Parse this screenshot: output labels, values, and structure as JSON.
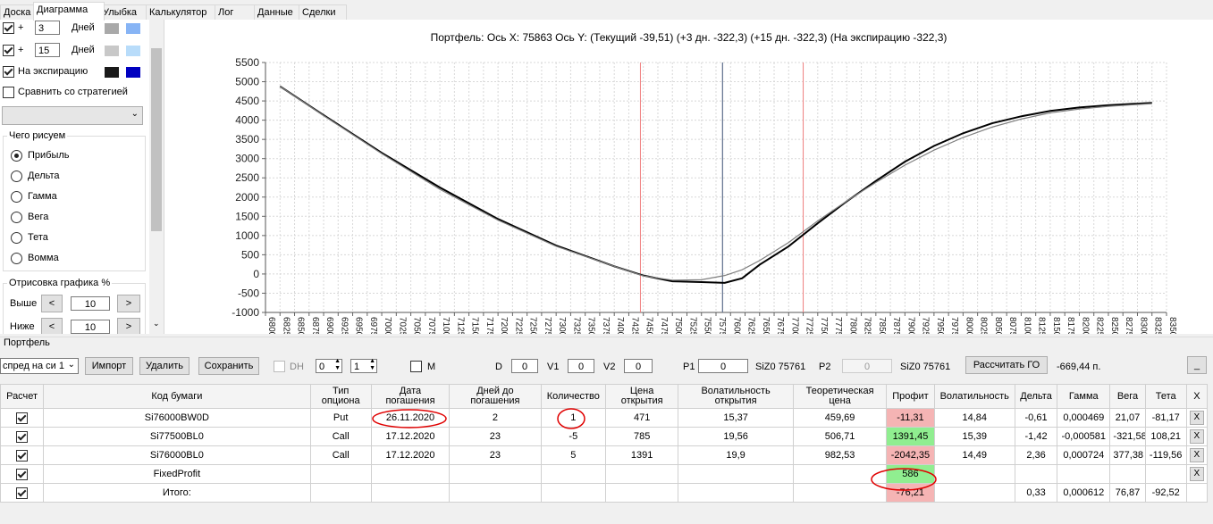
{
  "tabs": [
    "Доска",
    "Диаграмма",
    "Улыбка",
    "Калькулятор",
    "Лог",
    "Данные",
    "Сделки"
  ],
  "active_tab": "Диаграмма",
  "left_panel": {
    "row1": {
      "sign": "+",
      "value": "3",
      "unit": "Дней"
    },
    "row2": {
      "sign": "+",
      "value": "15",
      "unit": "Дней"
    },
    "expiry_label": "На экспирацию",
    "compare_label": "Сравнить со стратегией",
    "group_title": "Чего рисуем",
    "radio_options": [
      "Прибыль",
      "Дельта",
      "Гамма",
      "Вега",
      "Тета",
      "Вомма"
    ],
    "selected_radio": "Прибыль",
    "draw_group_title": "Отрисовка графика %",
    "above_label": "Выше",
    "above_value": "10",
    "below_label": "Ниже",
    "below_value": "10",
    "dec": "<",
    "inc": ">",
    "colors": {
      "row1_a": "#a9a9a9",
      "row1_b": "#87b4f5",
      "row2_a": "#c8c8c8",
      "row2_b": "#b8dcfa",
      "exp_a": "#1a1a1a",
      "exp_b": "#0000c0"
    }
  },
  "chart": {
    "header": "Портфель: Ось X: 75863 Ось Y:  (Текущий -39,51)  (+3 дн. -322,3)  (+15 дн. -322,3)  (На экспирацию -322,3)"
  },
  "chart_data": {
    "type": "line",
    "title": "Портфель: Ось X: 75863 Ось Y:  (Текущий -39,51)  (+3 дн. -322,3)  (+15 дн. -322,3)  (На экспирацию -322,3)",
    "xlim": [
      68000,
      83500
    ],
    "ylim": [
      -1000,
      5500
    ],
    "xticks": [
      68000,
      68250,
      68500,
      68750,
      69000,
      69250,
      69500,
      69750,
      70000,
      70250,
      70500,
      70750,
      71000,
      71250,
      71500,
      71750,
      72000,
      72250,
      72500,
      72750,
      73000,
      73250,
      73500,
      73750,
      74000,
      74250,
      74500,
      74750,
      75000,
      75250,
      75500,
      75750,
      76000,
      76250,
      76500,
      76750,
      77000,
      77250,
      77500,
      77750,
      78000,
      78250,
      78500,
      78750,
      79000,
      79250,
      79500,
      79750,
      80000,
      80250,
      80500,
      80750,
      81000,
      81250,
      81500,
      81750,
      82000,
      82250,
      82500,
      82750,
      83000,
      83250,
      83500
    ],
    "yticks": [
      5500,
      5000,
      4500,
      4000,
      3500,
      3000,
      2500,
      2000,
      1500,
      1000,
      500,
      0,
      -500,
      -1000
    ],
    "cursor_x": 75863,
    "reference_lines_x": [
      74450,
      77250
    ],
    "grid": true,
    "series": [
      {
        "color": "#000000",
        "x": [
          68250,
          69000,
          70000,
          71000,
          72000,
          73000,
          74000,
          74500,
          75000,
          75500,
          75900,
          76200,
          76500,
          77000,
          77500,
          78000,
          78500,
          79000,
          79500,
          80000,
          80500,
          81000,
          81500,
          82000,
          82500,
          83250
        ],
        "y": [
          4880,
          4130,
          3150,
          2250,
          1430,
          740,
          200,
          -40,
          -190,
          -210,
          -230,
          -110,
          240,
          720,
          1320,
          1890,
          2420,
          2920,
          3330,
          3660,
          3920,
          4100,
          4240,
          4330,
          4390,
          4450
        ]
      },
      {
        "color": "#7f7f7f",
        "x": [
          68250,
          69000,
          70000,
          71000,
          72000,
          73000,
          74000,
          74500,
          75000,
          75500,
          75900,
          76200,
          76500,
          77000,
          77500,
          78000,
          78500,
          79000,
          79500,
          80000,
          80500,
          81000,
          81500,
          82000,
          82500,
          83250
        ],
        "y": [
          4880,
          4120,
          3130,
          2200,
          1400,
          720,
          200,
          -50,
          -160,
          -150,
          -40,
          110,
          350,
          820,
          1380,
          1900,
          2380,
          2830,
          3220,
          3550,
          3820,
          4030,
          4190,
          4290,
          4360,
          4430
        ]
      }
    ]
  },
  "portfolio": {
    "title": "Портфель",
    "strategy_select": "спред на си 1",
    "import_label": "Импорт",
    "delete_label": "Удалить",
    "save_label": "Сохранить",
    "dh_label": "DH",
    "dh_val1": "0",
    "dh_val2": "1",
    "m_label": "M",
    "d_label": "D",
    "d_val": "0",
    "v1_label": "V1",
    "v1_val": "0",
    "v2_label": "V2",
    "v2_val": "0",
    "p1_label": "P1",
    "p1_val": "0",
    "p1_ticker": "SiZ0 75761",
    "p2_label": "P2",
    "p2_val": "0",
    "p2_ticker": "SiZ0 75761",
    "calc_go_label": "Рассчитать ГО",
    "go_value": "-669,44 п.",
    "minimize_label": "_"
  },
  "table": {
    "headers": [
      "Расчет",
      "Код бумаги",
      "Тип опциона",
      "Дата погашения",
      "Дней до погашения",
      "Количество",
      "Цена открытия",
      "Волатильность открытия",
      "Теоретическая цена",
      "Профит",
      "Волатильность",
      "Дельта",
      "Гамма",
      "Вега",
      "Тета",
      "X"
    ],
    "rows": [
      {
        "code": "Si76000BW0D",
        "type": "Put",
        "date": "26.11.2020",
        "days": "2",
        "qty": "1",
        "price": "471",
        "vol_open": "15,37",
        "theor": "459,69",
        "profit": "-11,31",
        "vol": "14,84",
        "delta": "-0,61",
        "gamma": "0,000469",
        "vega": "21,07",
        "theta": "-81,17",
        "x": "X"
      },
      {
        "code": "Si77500BL0",
        "type": "Call",
        "date": "17.12.2020",
        "days": "23",
        "qty": "-5",
        "price": "785",
        "vol_open": "19,56",
        "theor": "506,71",
        "profit": "1391,45",
        "vol": "15,39",
        "delta": "-1,42",
        "gamma": "-0,000581",
        "vega": "-321,58",
        "theta": "108,21",
        "x": "X"
      },
      {
        "code": "Si76000BL0",
        "type": "Call",
        "date": "17.12.2020",
        "days": "23",
        "qty": "5",
        "price": "1391",
        "vol_open": "19,9",
        "theor": "982,53",
        "profit": "-2042,35",
        "vol": "14,49",
        "delta": "2,36",
        "gamma": "0,000724",
        "vega": "377,38",
        "theta": "-119,56",
        "x": "X"
      },
      {
        "code": "FixedProfit",
        "type": "",
        "date": "",
        "days": "",
        "qty": "",
        "price": "",
        "vol_open": "",
        "theor": "",
        "profit": "586",
        "vol": "",
        "delta": "",
        "gamma": "",
        "vega": "",
        "theta": "",
        "x": "X"
      },
      {
        "code": "Итого:",
        "type": "",
        "date": "",
        "days": "",
        "qty": "",
        "price": "",
        "vol_open": "",
        "theor": "",
        "profit": "-76,21",
        "vol": "",
        "delta": "0,33",
        "gamma": "0,000612",
        "vega": "76,87",
        "theta": "-92,52",
        "x": ""
      }
    ],
    "profit_colors": {
      "negative": "#f5b4b4",
      "positive": "#90ee90"
    }
  },
  "annotation_color": "#e00000"
}
